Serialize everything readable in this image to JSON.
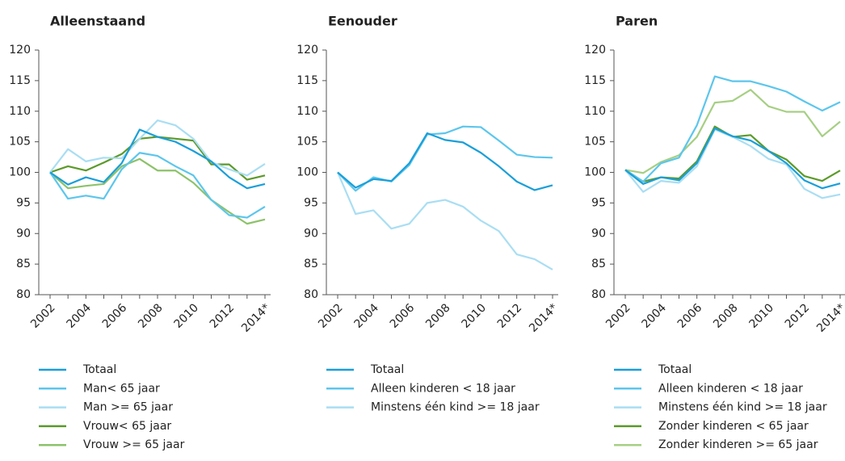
{
  "chart_data": [
    {
      "type": "line",
      "title": "Alleenstaand",
      "categories": [
        "2002",
        null,
        "2004",
        null,
        "2006",
        null,
        "2008",
        null,
        "2010",
        null,
        "2012",
        null,
        "2014*"
      ],
      "ylim": [
        80,
        120
      ],
      "yticks": [
        80,
        85,
        90,
        95,
        100,
        105,
        110,
        115,
        120
      ],
      "series": [
        {
          "name": "Totaal",
          "color": "#1a9fd9",
          "values": [
            100,
            98,
            99.2,
            98.4,
            101.5,
            107,
            105.8,
            105,
            103.5,
            101.8,
            99.2,
            97.4,
            98.1
          ]
        },
        {
          "name": "Man< 65 jaar",
          "color": "#5cc6ec",
          "values": [
            100,
            95.7,
            96.2,
            95.7,
            100.5,
            103.2,
            102.7,
            101,
            99.5,
            95.5,
            93,
            92.6,
            94.4
          ]
        },
        {
          "name": "Man >= 65 jaar",
          "color": "#a9def3",
          "values": [
            100,
            103.8,
            101.8,
            102.4,
            102.3,
            105.5,
            108.5,
            107.7,
            105.5,
            101.7,
            100.5,
            99.5,
            101.4
          ]
        },
        {
          "name": "Vrouw< 65 jaar",
          "color": "#5b9a2a",
          "values": [
            100,
            101,
            100.3,
            101.6,
            103,
            105.5,
            105.8,
            105.5,
            105.2,
            101.3,
            101.3,
            98.8,
            99.5
          ]
        },
        {
          "name": "Vrouw >= 65 jaar",
          "color": "#8cc26a",
          "values": [
            100,
            97.4,
            97.8,
            98.1,
            101,
            102.2,
            100.3,
            100.3,
            98.3,
            95.5,
            93.5,
            91.6,
            92.3
          ]
        }
      ]
    },
    {
      "type": "line",
      "title": "Eenouder",
      "categories": [
        "2002",
        null,
        "2004",
        null,
        "2006",
        null,
        "2008",
        null,
        "2010",
        null,
        "2012",
        null,
        "2014*"
      ],
      "ylim": [
        80,
        120
      ],
      "yticks": [
        80,
        85,
        90,
        95,
        100,
        105,
        110,
        115,
        120
      ],
      "series": [
        {
          "name": "Totaal",
          "color": "#1a9fd9",
          "values": [
            100,
            97.5,
            98.9,
            98.6,
            101.5,
            106.4,
            105.3,
            104.9,
            103.2,
            101,
            98.5,
            97.1,
            97.9
          ]
        },
        {
          "name": "Alleen kinderen < 18 jaar",
          "color": "#5cc6ec",
          "values": [
            100,
            97,
            99.2,
            98.5,
            101.2,
            106.2,
            106.4,
            107.5,
            107.4,
            105.2,
            102.9,
            102.5,
            102.4
          ]
        },
        {
          "name": "Minstens één kind >= 18 jaar",
          "color": "#a9def3",
          "values": [
            100,
            93.2,
            93.8,
            90.8,
            91.6,
            95,
            95.5,
            94.4,
            92.1,
            90.4,
            86.6,
            85.8,
            84.1
          ]
        }
      ]
    },
    {
      "type": "line",
      "title": "Paren",
      "categories": [
        "2002",
        null,
        "2004",
        null,
        "2006",
        null,
        "2008",
        null,
        "2010",
        null,
        "2012",
        null,
        "2014*"
      ],
      "ylim": [
        80,
        120
      ],
      "yticks": [
        80,
        85,
        90,
        95,
        100,
        105,
        110,
        115,
        120
      ],
      "series": [
        {
          "name": "Totaal",
          "color": "#1a9fd9",
          "values": [
            100.4,
            98.1,
            99.2,
            98.7,
            101.5,
            107.2,
            105.9,
            105.2,
            103.5,
            101.5,
            98.7,
            97.4,
            98.2
          ]
        },
        {
          "name": "Alleen kinderen < 18 jaar",
          "color": "#5cc6ec",
          "values": [
            100.4,
            98.5,
            101.5,
            102.4,
            107.7,
            115.7,
            114.9,
            114.9,
            114.1,
            113.2,
            111.6,
            110.1,
            111.5
          ]
        },
        {
          "name": "Minstens één kind >= 18 jaar",
          "color": "#a9def3",
          "values": [
            100.4,
            96.8,
            98.6,
            98.3,
            101,
            107,
            105.8,
            104.3,
            102.2,
            101.3,
            97.3,
            95.8,
            96.4
          ]
        },
        {
          "name": "Zonder kinderen < 65 jaar",
          "color": "#5b9a2a",
          "values": [
            100.4,
            98.5,
            99.2,
            99,
            101.8,
            107.5,
            105.8,
            106.1,
            103.5,
            102.1,
            99.4,
            98.6,
            100.3
          ]
        },
        {
          "name": "Zonder kinderen >= 65 jaar",
          "color": "#a6cf83",
          "values": [
            100.4,
            99.9,
            101.7,
            102.8,
            105.8,
            111.4,
            111.7,
            113.5,
            110.8,
            109.9,
            109.9,
            105.9,
            108.3
          ]
        }
      ]
    }
  ]
}
